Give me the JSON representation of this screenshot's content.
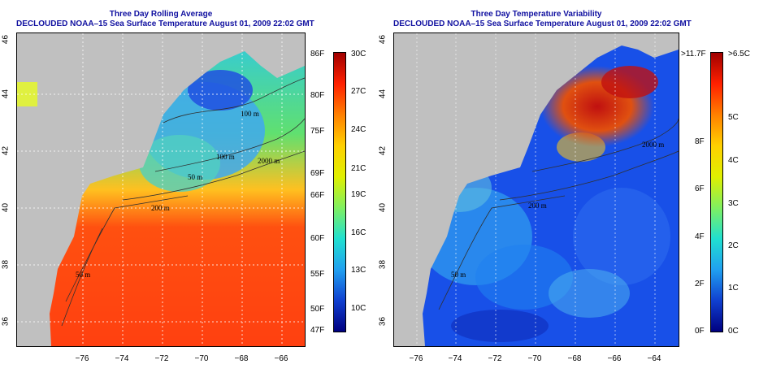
{
  "left": {
    "title1": "Three Day Rolling Average",
    "title2": "DECLOUDED NOAA–15 Sea Surface Temperature August 01, 2009 22:02 GMT",
    "colorbar": {
      "f_labels": [
        "86F",
        "80F",
        "75F",
        "69F",
        "66F",
        "60F",
        "55F",
        "50F",
        "47F"
      ],
      "c_labels": [
        "30C",
        "27C",
        "24C",
        "21C",
        "19C",
        "16C",
        "13C",
        "10C"
      ]
    },
    "contours": [
      "100 m",
      "2000 m",
      "100 m",
      "50 m",
      "200 m",
      "50 m"
    ]
  },
  "right": {
    "title1": "Three Day Temperature Variability",
    "title2": "DECLOUDED NOAA–15 Sea Surface Temperature August 01, 2009 22:02 GMT",
    "colorbar": {
      "f_labels": [
        ">11.7F",
        "8F",
        "6F",
        "4F",
        "2F",
        "0F"
      ],
      "c_labels": [
        ">6.5C",
        "5C",
        "4C",
        "3C",
        "2C",
        "1C",
        "0C"
      ]
    },
    "contours": [
      "2000 m",
      "200 m",
      "50 m"
    ]
  },
  "axes": {
    "x_ticks": [
      "−76",
      "−74",
      "−72",
      "−70",
      "−68",
      "−66",
      "−64"
    ],
    "y_ticks": [
      "46",
      "44",
      "42",
      "40",
      "38",
      "36"
    ]
  },
  "colors": {
    "land": "#c0c0c0",
    "sst_warm": "#ff4010",
    "sst_cool": "#20c0e0",
    "var_low": "#1040e0",
    "var_high": "#c01010"
  }
}
